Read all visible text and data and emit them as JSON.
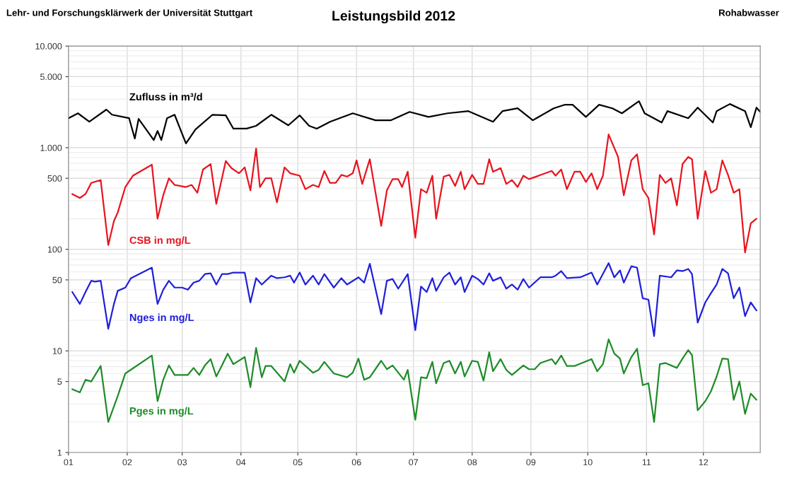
{
  "chart_data": {
    "type": "line",
    "title": "Leistungsbild 2012",
    "annotations": [
      "Lehr- und Forschungsklärwerk der Universität Stuttgart",
      "Rohabwasser"
    ],
    "log": "y",
    "grid": true,
    "legend": false,
    "marker": "none",
    "line_style": "solid",
    "xlim": [
      "2012-01-01",
      "2012-12-31"
    ],
    "xticks": [
      {
        "value": "2012-01-01",
        "label": "01"
      },
      {
        "value": "2012-02-01",
        "label": "02"
      },
      {
        "value": "2012-03-01",
        "label": "03"
      },
      {
        "value": "2012-04-01",
        "label": "04"
      },
      {
        "value": "2012-05-01",
        "label": "05"
      },
      {
        "value": "2012-06-01",
        "label": "06"
      },
      {
        "value": "2012-07-01",
        "label": "07"
      },
      {
        "value": "2012-08-01",
        "label": "08"
      },
      {
        "value": "2012-09-01",
        "label": "09"
      },
      {
        "value": "2012-10-01",
        "label": "10"
      },
      {
        "value": "2012-11-01",
        "label": "11"
      },
      {
        "value": "2012-12-01",
        "label": "12"
      }
    ],
    "ylim": [
      1,
      10000
    ],
    "yticks": [
      1,
      5,
      10,
      50,
      100,
      500,
      {
        "value": 1000,
        "label": "1.000"
      },
      {
        "value": 5000,
        "label": "5.000"
      },
      {
        "value": 10000,
        "label": "10.000"
      }
    ],
    "series": [
      {
        "name": "Zufluss in m³/d",
        "color": "#000000",
        "x": [
          "2012-01-01",
          "2012-01-06",
          "2012-01-12",
          "2012-01-21",
          "2012-01-24",
          "2012-02-02",
          "2012-02-05",
          "2012-02-07",
          "2012-02-15",
          "2012-02-17",
          "2012-02-19",
          "2012-02-22",
          "2012-02-26",
          "2012-03-03",
          "2012-03-08",
          "2012-03-17",
          "2012-03-24",
          "2012-03-28",
          "2012-04-04",
          "2012-04-09",
          "2012-04-17",
          "2012-04-26",
          "2012-05-02",
          "2012-05-07",
          "2012-05-11",
          "2012-05-18",
          "2012-05-30",
          "2012-06-11",
          "2012-06-19",
          "2012-06-29",
          "2012-07-09",
          "2012-07-19",
          "2012-07-30",
          "2012-08-12",
          "2012-08-17",
          "2012-08-25",
          "2012-09-02",
          "2012-09-13",
          "2012-09-19",
          "2012-09-23",
          "2012-09-30",
          "2012-10-07",
          "2012-10-14",
          "2012-10-19",
          "2012-10-28",
          "2012-10-31",
          "2012-11-09",
          "2012-11-12",
          "2012-11-23",
          "2012-11-28",
          "2012-12-06",
          "2012-12-08",
          "2012-12-15",
          "2012-12-23",
          "2012-12-26",
          "2012-12-29",
          "2012-12-31"
        ],
        "values": [
          1950,
          2180,
          1800,
          2370,
          2110,
          1950,
          1230,
          1920,
          1190,
          1460,
          1190,
          1950,
          2110,
          1100,
          1510,
          2110,
          2080,
          1540,
          1540,
          1640,
          2110,
          1660,
          2080,
          1640,
          1540,
          1800,
          2180,
          1860,
          1860,
          2250,
          2010,
          2180,
          2290,
          1800,
          2290,
          2440,
          1860,
          2440,
          2650,
          2650,
          2010,
          2650,
          2440,
          2180,
          2870,
          2180,
          1770,
          2290,
          1950,
          2480,
          1770,
          2290,
          2690,
          2290,
          1590,
          2480,
          2250
        ]
      },
      {
        "name": "CSB in mg/L",
        "color": "#e8141e",
        "x": [
          "2012-01-03",
          "2012-01-07",
          "2012-01-10",
          "2012-01-13",
          "2012-01-18",
          "2012-01-22",
          "2012-01-25",
          "2012-01-27",
          "2012-01-31",
          "2012-02-04",
          "2012-02-14",
          "2012-02-17",
          "2012-02-20",
          "2012-02-23",
          "2012-02-26",
          "2012-03-03",
          "2012-03-06",
          "2012-03-09",
          "2012-03-12",
          "2012-03-16",
          "2012-03-19",
          "2012-03-24",
          "2012-03-27",
          "2012-03-31",
          "2012-04-03",
          "2012-04-06",
          "2012-04-09",
          "2012-04-11",
          "2012-04-14",
          "2012-04-17",
          "2012-04-20",
          "2012-04-24",
          "2012-04-27",
          "2012-05-02",
          "2012-05-05",
          "2012-05-09",
          "2012-05-12",
          "2012-05-15",
          "2012-05-18",
          "2012-05-21",
          "2012-05-24",
          "2012-05-27",
          "2012-05-30",
          "2012-06-01",
          "2012-06-04",
          "2012-06-08",
          "2012-06-14",
          "2012-06-17",
          "2012-06-20",
          "2012-06-23",
          "2012-06-25",
          "2012-06-28",
          "2012-07-02",
          "2012-07-05",
          "2012-07-08",
          "2012-07-11",
          "2012-07-13",
          "2012-07-17",
          "2012-07-20",
          "2012-07-23",
          "2012-07-26",
          "2012-07-28",
          "2012-08-01",
          "2012-08-04",
          "2012-08-07",
          "2012-08-10",
          "2012-08-12",
          "2012-08-16",
          "2012-08-19",
          "2012-08-22",
          "2012-08-25",
          "2012-08-28",
          "2012-08-31",
          "2012-09-12",
          "2012-09-14",
          "2012-09-17",
          "2012-09-20",
          "2012-09-24",
          "2012-09-27",
          "2012-09-30",
          "2012-10-03",
          "2012-10-06",
          "2012-10-09",
          "2012-10-12",
          "2012-10-17",
          "2012-10-20",
          "2012-10-24",
          "2012-10-27",
          "2012-10-30",
          "2012-11-02",
          "2012-11-05",
          "2012-11-08",
          "2012-11-11",
          "2012-11-14",
          "2012-11-17",
          "2012-11-20",
          "2012-11-23",
          "2012-11-25",
          "2012-11-28",
          "2012-12-02",
          "2012-12-05",
          "2012-12-08",
          "2012-12-11",
          "2012-12-14",
          "2012-12-17",
          "2012-12-20",
          "2012-12-23",
          "2012-12-26",
          "2012-12-29"
        ],
        "values": [
          350,
          320,
          350,
          450,
          480,
          110,
          190,
          230,
          410,
          530,
          680,
          200,
          340,
          500,
          430,
          410,
          430,
          360,
          610,
          690,
          280,
          740,
          630,
          560,
          640,
          380,
          980,
          410,
          500,
          500,
          290,
          640,
          560,
          530,
          390,
          430,
          410,
          590,
          450,
          450,
          540,
          520,
          560,
          750,
          440,
          770,
          170,
          380,
          490,
          490,
          410,
          580,
          130,
          390,
          360,
          530,
          200,
          520,
          540,
          420,
          580,
          390,
          540,
          440,
          440,
          770,
          580,
          630,
          440,
          480,
          410,
          530,
          490,
          590,
          530,
          610,
          390,
          580,
          580,
          460,
          560,
          390,
          530,
          1350,
          810,
          340,
          750,
          860,
          390,
          320,
          140,
          540,
          450,
          500,
          270,
          690,
          810,
          770,
          200,
          590,
          360,
          390,
          750,
          540,
          360,
          390,
          93,
          180,
          200
        ]
      },
      {
        "name": "Nges in mg/L",
        "color": "#2020d8",
        "x": [
          "2012-01-03",
          "2012-01-07",
          "2012-01-10",
          "2012-01-13",
          "2012-01-15",
          "2012-01-18",
          "2012-01-22",
          "2012-01-25",
          "2012-01-27",
          "2012-01-31",
          "2012-02-03",
          "2012-02-14",
          "2012-02-17",
          "2012-02-20",
          "2012-02-23",
          "2012-02-26",
          "2012-03-01",
          "2012-03-04",
          "2012-03-07",
          "2012-03-10",
          "2012-03-13",
          "2012-03-16",
          "2012-03-19",
          "2012-03-22",
          "2012-03-25",
          "2012-03-28",
          "2012-04-03",
          "2012-04-06",
          "2012-04-09",
          "2012-04-12",
          "2012-04-17",
          "2012-04-20",
          "2012-04-24",
          "2012-04-27",
          "2012-04-29",
          "2012-05-02",
          "2012-05-05",
          "2012-05-09",
          "2012-05-12",
          "2012-05-15",
          "2012-05-20",
          "2012-05-24",
          "2012-05-27",
          "2012-06-02",
          "2012-06-05",
          "2012-06-08",
          "2012-06-14",
          "2012-06-17",
          "2012-06-20",
          "2012-06-23",
          "2012-06-28",
          "2012-07-02",
          "2012-07-05",
          "2012-07-08",
          "2012-07-11",
          "2012-07-13",
          "2012-07-17",
          "2012-07-20",
          "2012-07-23",
          "2012-07-26",
          "2012-07-28",
          "2012-08-01",
          "2012-08-04",
          "2012-08-07",
          "2012-08-10",
          "2012-08-12",
          "2012-08-16",
          "2012-08-19",
          "2012-08-22",
          "2012-08-25",
          "2012-08-28",
          "2012-08-31",
          "2012-09-06",
          "2012-09-12",
          "2012-09-14",
          "2012-09-17",
          "2012-09-20",
          "2012-09-27",
          "2012-10-03",
          "2012-10-06",
          "2012-10-12",
          "2012-10-15",
          "2012-10-18",
          "2012-10-20",
          "2012-10-24",
          "2012-10-27",
          "2012-10-30",
          "2012-11-02",
          "2012-11-05",
          "2012-11-08",
          "2012-11-14",
          "2012-11-17",
          "2012-11-20",
          "2012-11-23",
          "2012-11-25",
          "2012-11-28",
          "2012-12-02",
          "2012-12-05",
          "2012-12-08",
          "2012-12-11",
          "2012-12-14",
          "2012-12-17",
          "2012-12-20",
          "2012-12-23",
          "2012-12-26",
          "2012-12-29"
        ],
        "values": [
          38,
          29,
          38,
          49,
          48,
          49,
          16.5,
          29,
          39,
          42,
          52,
          66,
          29,
          40,
          49,
          42,
          42,
          40,
          47,
          49,
          57,
          58,
          45,
          57,
          57,
          59,
          59,
          30,
          52,
          45,
          55,
          52,
          53,
          55,
          47,
          59,
          45,
          55,
          45,
          57,
          42,
          52,
          45,
          53,
          47,
          72,
          23,
          49,
          51,
          41,
          57,
          16,
          43,
          38,
          52,
          39,
          53,
          59,
          45,
          53,
          38,
          55,
          51,
          45,
          58,
          49,
          53,
          41,
          45,
          40,
          51,
          42,
          53,
          53,
          55,
          61,
          52,
          53,
          59,
          45,
          73,
          53,
          62,
          47,
          68,
          66,
          33,
          32,
          14,
          55,
          53,
          62,
          61,
          64,
          57,
          19,
          30,
          37,
          45,
          64,
          58,
          33,
          42,
          22,
          30,
          25
        ]
      },
      {
        "name": "Pges in mg/L",
        "color": "#1e8c28",
        "x": [
          "2012-01-03",
          "2012-01-07",
          "2012-01-10",
          "2012-01-13",
          "2012-01-18",
          "2012-01-22",
          "2012-01-27",
          "2012-01-31",
          "2012-02-14",
          "2012-02-17",
          "2012-02-20",
          "2012-02-23",
          "2012-02-26",
          "2012-03-04",
          "2012-03-07",
          "2012-03-10",
          "2012-03-13",
          "2012-03-16",
          "2012-03-19",
          "2012-03-22",
          "2012-03-25",
          "2012-03-28",
          "2012-04-03",
          "2012-04-06",
          "2012-04-09",
          "2012-04-12",
          "2012-04-14",
          "2012-04-17",
          "2012-04-24",
          "2012-04-27",
          "2012-04-29",
          "2012-05-02",
          "2012-05-09",
          "2012-05-12",
          "2012-05-15",
          "2012-05-20",
          "2012-05-27",
          "2012-05-30",
          "2012-06-02",
          "2012-06-05",
          "2012-06-08",
          "2012-06-14",
          "2012-06-17",
          "2012-06-20",
          "2012-06-26",
          "2012-06-28",
          "2012-07-02",
          "2012-07-05",
          "2012-07-08",
          "2012-07-11",
          "2012-07-13",
          "2012-07-17",
          "2012-07-20",
          "2012-07-23",
          "2012-07-26",
          "2012-07-28",
          "2012-08-01",
          "2012-08-04",
          "2012-08-07",
          "2012-08-10",
          "2012-08-12",
          "2012-08-16",
          "2012-08-19",
          "2012-08-22",
          "2012-08-28",
          "2012-08-31",
          "2012-09-03",
          "2012-09-06",
          "2012-09-12",
          "2012-09-14",
          "2012-09-17",
          "2012-09-20",
          "2012-09-24",
          "2012-10-03",
          "2012-10-06",
          "2012-10-09",
          "2012-10-12",
          "2012-10-15",
          "2012-10-18",
          "2012-10-20",
          "2012-10-24",
          "2012-10-27",
          "2012-10-30",
          "2012-11-02",
          "2012-11-05",
          "2012-11-08",
          "2012-11-11",
          "2012-11-17",
          "2012-11-20",
          "2012-11-23",
          "2012-11-25",
          "2012-11-28",
          "2012-12-02",
          "2012-12-05",
          "2012-12-08",
          "2012-12-11",
          "2012-12-14",
          "2012-12-17",
          "2012-12-20",
          "2012-12-23",
          "2012-12-26",
          "2012-12-29"
        ],
        "values": [
          4.2,
          3.9,
          5.2,
          5.0,
          7.1,
          2.0,
          3.6,
          6.0,
          9.0,
          3.2,
          5.2,
          7.2,
          5.8,
          5.8,
          6.8,
          5.8,
          7.2,
          8.3,
          5.6,
          7.2,
          9.4,
          7.4,
          8.7,
          4.4,
          10.7,
          5.5,
          7.1,
          7.1,
          5.0,
          7.4,
          6.1,
          8.0,
          6.1,
          6.5,
          7.8,
          6.0,
          5.5,
          6.1,
          8.4,
          5.2,
          5.5,
          8.0,
          6.6,
          7.2,
          5.2,
          6.5,
          2.1,
          5.5,
          5.4,
          7.8,
          4.8,
          7.6,
          8.0,
          6.0,
          7.8,
          5.6,
          8.0,
          7.8,
          5.1,
          9.7,
          6.3,
          8.3,
          6.5,
          5.8,
          7.2,
          6.6,
          6.6,
          7.6,
          8.3,
          7.4,
          9.0,
          7.1,
          7.1,
          8.3,
          6.3,
          7.4,
          13,
          9.4,
          8.4,
          6.0,
          8.7,
          10.5,
          4.6,
          4.8,
          2.0,
          7.4,
          7.6,
          6.8,
          8.4,
          10.2,
          9.1,
          2.6,
          3.2,
          4.0,
          5.6,
          8.4,
          8.3,
          3.3,
          5.0,
          2.4,
          3.8,
          3.3
        ]
      }
    ]
  }
}
